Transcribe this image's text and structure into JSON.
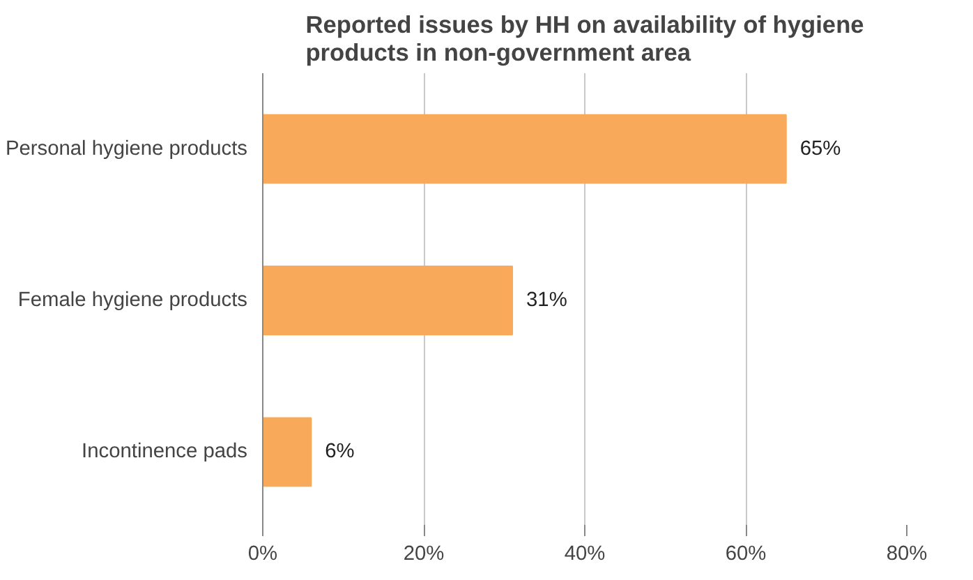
{
  "chart_data": {
    "type": "bar",
    "orientation": "horizontal",
    "title": "Reported issues by HH on availability of hygiene\nproducts in non-government area",
    "categories": [
      "Personal hygiene products",
      "Female hygiene products",
      "Incontinence pads"
    ],
    "values": [
      65,
      31,
      6
    ],
    "value_labels": [
      "65%",
      "31%",
      "6%"
    ],
    "color": "#f9a95a",
    "xlim": [
      0,
      80
    ],
    "xticks": [
      {
        "value": 0,
        "label": "0%"
      },
      {
        "value": 20,
        "label": "20%"
      },
      {
        "value": 40,
        "label": "40%"
      },
      {
        "value": 60,
        "label": "60%"
      },
      {
        "value": 80,
        "label": "80%"
      }
    ],
    "grid": "x"
  }
}
